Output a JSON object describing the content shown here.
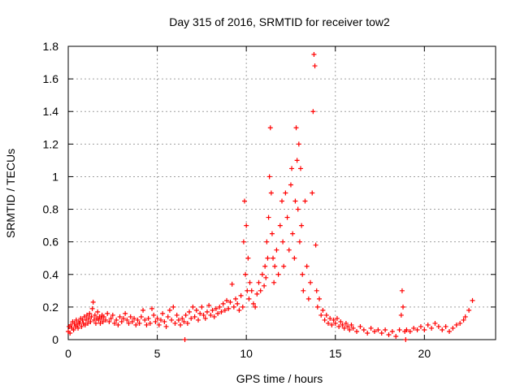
{
  "chart_data": {
    "type": "scatter",
    "title": "Day 315 of 2016, SRMTID for receiver tow2",
    "xlabel": "GPS time / hours",
    "ylabel": "SRMTID / TECUs",
    "xlim": [
      0,
      24
    ],
    "ylim": [
      0,
      1.8
    ],
    "xticks": [
      0,
      5,
      10,
      15,
      20
    ],
    "yticks": [
      0,
      0.2,
      0.4,
      0.6,
      0.8,
      1,
      1.2,
      1.4,
      1.6,
      1.8
    ],
    "xtick_labels": [
      "0",
      "5",
      "10",
      "15",
      "20"
    ],
    "ytick_labels": [
      "0",
      "0.2",
      "0.4",
      "0.6",
      "0.8",
      "1",
      "1.2",
      "1.4",
      "1.6",
      "1.8"
    ],
    "grid": true,
    "marker": "+",
    "color": "#ff0000",
    "series": [
      {
        "name": "SRMTID",
        "points": [
          [
            0.0,
            0.05
          ],
          [
            0.05,
            0.08
          ],
          [
            0.1,
            0.04
          ],
          [
            0.15,
            0.09
          ],
          [
            0.2,
            0.07
          ],
          [
            0.25,
            0.11
          ],
          [
            0.3,
            0.06
          ],
          [
            0.35,
            0.1
          ],
          [
            0.4,
            0.08
          ],
          [
            0.45,
            0.12
          ],
          [
            0.5,
            0.09
          ],
          [
            0.55,
            0.07
          ],
          [
            0.6,
            0.11
          ],
          [
            0.65,
            0.1
          ],
          [
            0.7,
            0.13
          ],
          [
            0.75,
            0.08
          ],
          [
            0.8,
            0.12
          ],
          [
            0.85,
            0.1
          ],
          [
            0.9,
            0.14
          ],
          [
            0.95,
            0.09
          ],
          [
            1.0,
            0.12
          ],
          [
            1.05,
            0.15
          ],
          [
            1.1,
            0.1
          ],
          [
            1.15,
            0.13
          ],
          [
            1.2,
            0.16
          ],
          [
            1.25,
            0.11
          ],
          [
            1.3,
            0.14
          ],
          [
            1.35,
            0.19
          ],
          [
            1.4,
            0.23
          ],
          [
            1.45,
            0.12
          ],
          [
            1.5,
            0.15
          ],
          [
            1.55,
            0.1
          ],
          [
            1.6,
            0.13
          ],
          [
            1.65,
            0.17
          ],
          [
            1.7,
            0.12
          ],
          [
            1.75,
            0.14
          ],
          [
            1.8,
            0.1
          ],
          [
            1.85,
            0.13
          ],
          [
            1.9,
            0.15
          ],
          [
            1.95,
            0.11
          ],
          [
            2.0,
            0.14
          ],
          [
            2.1,
            0.12
          ],
          [
            2.2,
            0.16
          ],
          [
            2.3,
            0.11
          ],
          [
            2.4,
            0.13
          ],
          [
            2.5,
            0.15
          ],
          [
            2.6,
            0.1
          ],
          [
            2.7,
            0.12
          ],
          [
            2.8,
            0.09
          ],
          [
            2.9,
            0.14
          ],
          [
            3.0,
            0.11
          ],
          [
            3.1,
            0.13
          ],
          [
            3.2,
            0.16
          ],
          [
            3.3,
            0.12
          ],
          [
            3.4,
            0.1
          ],
          [
            3.5,
            0.14
          ],
          [
            3.6,
            0.11
          ],
          [
            3.7,
            0.13
          ],
          [
            3.8,
            0.09
          ],
          [
            3.9,
            0.12
          ],
          [
            4.0,
            0.1
          ],
          [
            4.1,
            0.14
          ],
          [
            4.2,
            0.18
          ],
          [
            4.3,
            0.12
          ],
          [
            4.4,
            0.09
          ],
          [
            4.5,
            0.13
          ],
          [
            4.6,
            0.1
          ],
          [
            4.7,
            0.19
          ],
          [
            4.8,
            0.15
          ],
          [
            4.9,
            0.11
          ],
          [
            5.0,
            0.13
          ],
          [
            5.1,
            0.09
          ],
          [
            5.2,
            0.12
          ],
          [
            5.3,
            0.16
          ],
          [
            5.4,
            0.11
          ],
          [
            5.5,
            0.08
          ],
          [
            5.6,
            0.14
          ],
          [
            5.7,
            0.18
          ],
          [
            5.8,
            0.12
          ],
          [
            5.9,
            0.2
          ],
          [
            6.0,
            0.1
          ],
          [
            6.1,
            0.15
          ],
          [
            6.2,
            0.12
          ],
          [
            6.3,
            0.09
          ],
          [
            6.4,
            0.13
          ],
          [
            6.5,
            0.11
          ],
          [
            6.55,
            0.0
          ],
          [
            6.6,
            0.15
          ],
          [
            6.7,
            0.1
          ],
          [
            6.8,
            0.17
          ],
          [
            6.9,
            0.13
          ],
          [
            7.0,
            0.2
          ],
          [
            7.1,
            0.14
          ],
          [
            7.2,
            0.18
          ],
          [
            7.3,
            0.12
          ],
          [
            7.4,
            0.16
          ],
          [
            7.5,
            0.2
          ],
          [
            7.6,
            0.15
          ],
          [
            7.7,
            0.13
          ],
          [
            7.8,
            0.17
          ],
          [
            7.9,
            0.21
          ],
          [
            8.0,
            0.15
          ],
          [
            8.1,
            0.18
          ],
          [
            8.2,
            0.14
          ],
          [
            8.3,
            0.19
          ],
          [
            8.4,
            0.16
          ],
          [
            8.5,
            0.2
          ],
          [
            8.6,
            0.17
          ],
          [
            8.7,
            0.22
          ],
          [
            8.8,
            0.18
          ],
          [
            8.9,
            0.24
          ],
          [
            9.0,
            0.19
          ],
          [
            9.1,
            0.23
          ],
          [
            9.2,
            0.34
          ],
          [
            9.3,
            0.2
          ],
          [
            9.4,
            0.25
          ],
          [
            9.5,
            0.22
          ],
          [
            9.6,
            0.18
          ],
          [
            9.7,
            0.27
          ],
          [
            9.8,
            0.2
          ],
          [
            9.85,
            0.6
          ],
          [
            9.9,
            0.85
          ],
          [
            9.95,
            0.4
          ],
          [
            10.0,
            0.7
          ],
          [
            10.05,
            0.3
          ],
          [
            10.1,
            0.5
          ],
          [
            10.15,
            0.25
          ],
          [
            10.2,
            0.35
          ],
          [
            10.3,
            0.3
          ],
          [
            10.4,
            0.22
          ],
          [
            10.5,
            0.2
          ],
          [
            10.6,
            0.28
          ],
          [
            10.7,
            0.35
          ],
          [
            10.8,
            0.3
          ],
          [
            10.9,
            0.4
          ],
          [
            11.0,
            0.33
          ],
          [
            11.05,
            0.45
          ],
          [
            11.1,
            0.38
          ],
          [
            11.15,
            0.6
          ],
          [
            11.2,
            0.5
          ],
          [
            11.25,
            0.75
          ],
          [
            11.3,
            1.0
          ],
          [
            11.35,
            1.3
          ],
          [
            11.4,
            0.9
          ],
          [
            11.45,
            0.65
          ],
          [
            11.5,
            0.5
          ],
          [
            11.55,
            0.35
          ],
          [
            11.6,
            0.45
          ],
          [
            11.7,
            0.55
          ],
          [
            11.8,
            0.4
          ],
          [
            11.9,
            0.7
          ],
          [
            12.0,
            0.85
          ],
          [
            12.05,
            0.6
          ],
          [
            12.1,
            0.45
          ],
          [
            12.2,
            0.9
          ],
          [
            12.3,
            0.75
          ],
          [
            12.4,
            0.55
          ],
          [
            12.5,
            0.95
          ],
          [
            12.55,
            1.05
          ],
          [
            12.6,
            0.65
          ],
          [
            12.7,
            0.5
          ],
          [
            12.75,
            0.85
          ],
          [
            12.8,
            1.3
          ],
          [
            12.85,
            1.1
          ],
          [
            12.9,
            0.8
          ],
          [
            12.95,
            1.2
          ],
          [
            13.0,
            0.6
          ],
          [
            13.05,
            1.05
          ],
          [
            13.1,
            0.7
          ],
          [
            13.15,
            0.4
          ],
          [
            13.2,
            0.3
          ],
          [
            13.3,
            0.85
          ],
          [
            13.4,
            0.45
          ],
          [
            13.5,
            0.25
          ],
          [
            13.6,
            0.35
          ],
          [
            13.7,
            0.9
          ],
          [
            13.75,
            1.4
          ],
          [
            13.8,
            1.75
          ],
          [
            13.85,
            1.68
          ],
          [
            13.9,
            0.58
          ],
          [
            13.95,
            0.3
          ],
          [
            14.0,
            0.2
          ],
          [
            14.1,
            0.25
          ],
          [
            14.2,
            0.15
          ],
          [
            14.3,
            0.18
          ],
          [
            14.4,
            0.12
          ],
          [
            14.5,
            0.15
          ],
          [
            14.6,
            0.1
          ],
          [
            14.7,
            0.13
          ],
          [
            14.8,
            0.09
          ],
          [
            14.9,
            0.12
          ],
          [
            15.0,
            0.1
          ],
          [
            15.1,
            0.13
          ],
          [
            15.2,
            0.08
          ],
          [
            15.3,
            0.11
          ],
          [
            15.4,
            0.09
          ],
          [
            15.5,
            0.07
          ],
          [
            15.6,
            0.1
          ],
          [
            15.7,
            0.08
          ],
          [
            15.8,
            0.06
          ],
          [
            15.9,
            0.09
          ],
          [
            16.0,
            0.07
          ],
          [
            16.2,
            0.05
          ],
          [
            16.4,
            0.08
          ],
          [
            16.6,
            0.06
          ],
          [
            16.8,
            0.04
          ],
          [
            17.0,
            0.07
          ],
          [
            17.2,
            0.05
          ],
          [
            17.4,
            0.06
          ],
          [
            17.6,
            0.04
          ],
          [
            17.8,
            0.06
          ],
          [
            18.0,
            0.03
          ],
          [
            18.2,
            0.05
          ],
          [
            18.4,
            0.02
          ],
          [
            18.6,
            0.06
          ],
          [
            18.7,
            0.15
          ],
          [
            18.75,
            0.3
          ],
          [
            18.8,
            0.2
          ],
          [
            18.9,
            0.05
          ],
          [
            18.95,
            0.0
          ],
          [
            19.0,
            0.06
          ],
          [
            19.2,
            0.05
          ],
          [
            19.4,
            0.07
          ],
          [
            19.6,
            0.06
          ],
          [
            19.8,
            0.08
          ],
          [
            20.0,
            0.06
          ],
          [
            20.2,
            0.09
          ],
          [
            20.4,
            0.07
          ],
          [
            20.6,
            0.1
          ],
          [
            20.8,
            0.08
          ],
          [
            21.0,
            0.06
          ],
          [
            21.2,
            0.08
          ],
          [
            21.4,
            0.05
          ],
          [
            21.6,
            0.07
          ],
          [
            21.8,
            0.09
          ],
          [
            22.0,
            0.1
          ],
          [
            22.2,
            0.12
          ],
          [
            22.3,
            0.14
          ],
          [
            22.5,
            0.18
          ],
          [
            22.7,
            0.24
          ]
        ]
      }
    ]
  }
}
